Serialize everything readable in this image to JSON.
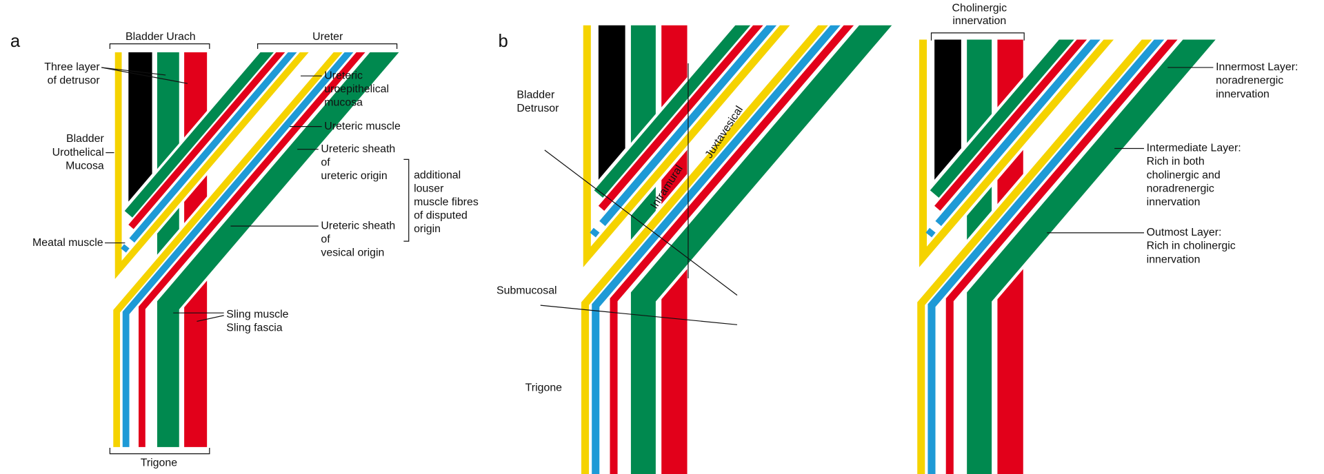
{
  "panel_a": {
    "label": "a",
    "brackets": [
      "Bladder Urach",
      "Ureter",
      "Trigone"
    ],
    "annotations": [
      [
        "Three layer",
        "of detrusor"
      ],
      [
        "Bladder",
        "Urothelical",
        "Mucosa"
      ],
      [
        "Meatal muscle"
      ],
      [
        "Ureteric",
        "uroepithelical",
        "mucosa"
      ],
      [
        "Ureteric muscle"
      ],
      [
        "Ureteric sheath",
        "of",
        "ureteric origin"
      ],
      [
        "Ureteric sheath",
        "of",
        "vesical origin"
      ],
      [
        "Sling muscle",
        "Sling fascia"
      ]
    ],
    "side_note": [
      "additional",
      "louser",
      "muscle fibres",
      "of disputed",
      "origin"
    ]
  },
  "panel_b": {
    "label": "b",
    "regions": [
      [
        "Bladder",
        "Detrusor"
      ],
      [
        "Submucosal"
      ],
      [
        "Trigone"
      ]
    ],
    "zones": [
      "Intramural",
      "Juxtavesical"
    ]
  },
  "panel_c": {
    "bracket": [
      "Cholinergic",
      "innervation"
    ],
    "annotations": [
      [
        "Innermost Layer:",
        "noradrenergic",
        "innervation"
      ],
      [
        "Intermediate Layer:",
        "Rich in both",
        "cholinergic and",
        "noradrenergic",
        "innervation"
      ],
      [
        "Outmost Layer:",
        "Rich in cholinergic",
        "innervation"
      ]
    ]
  }
}
